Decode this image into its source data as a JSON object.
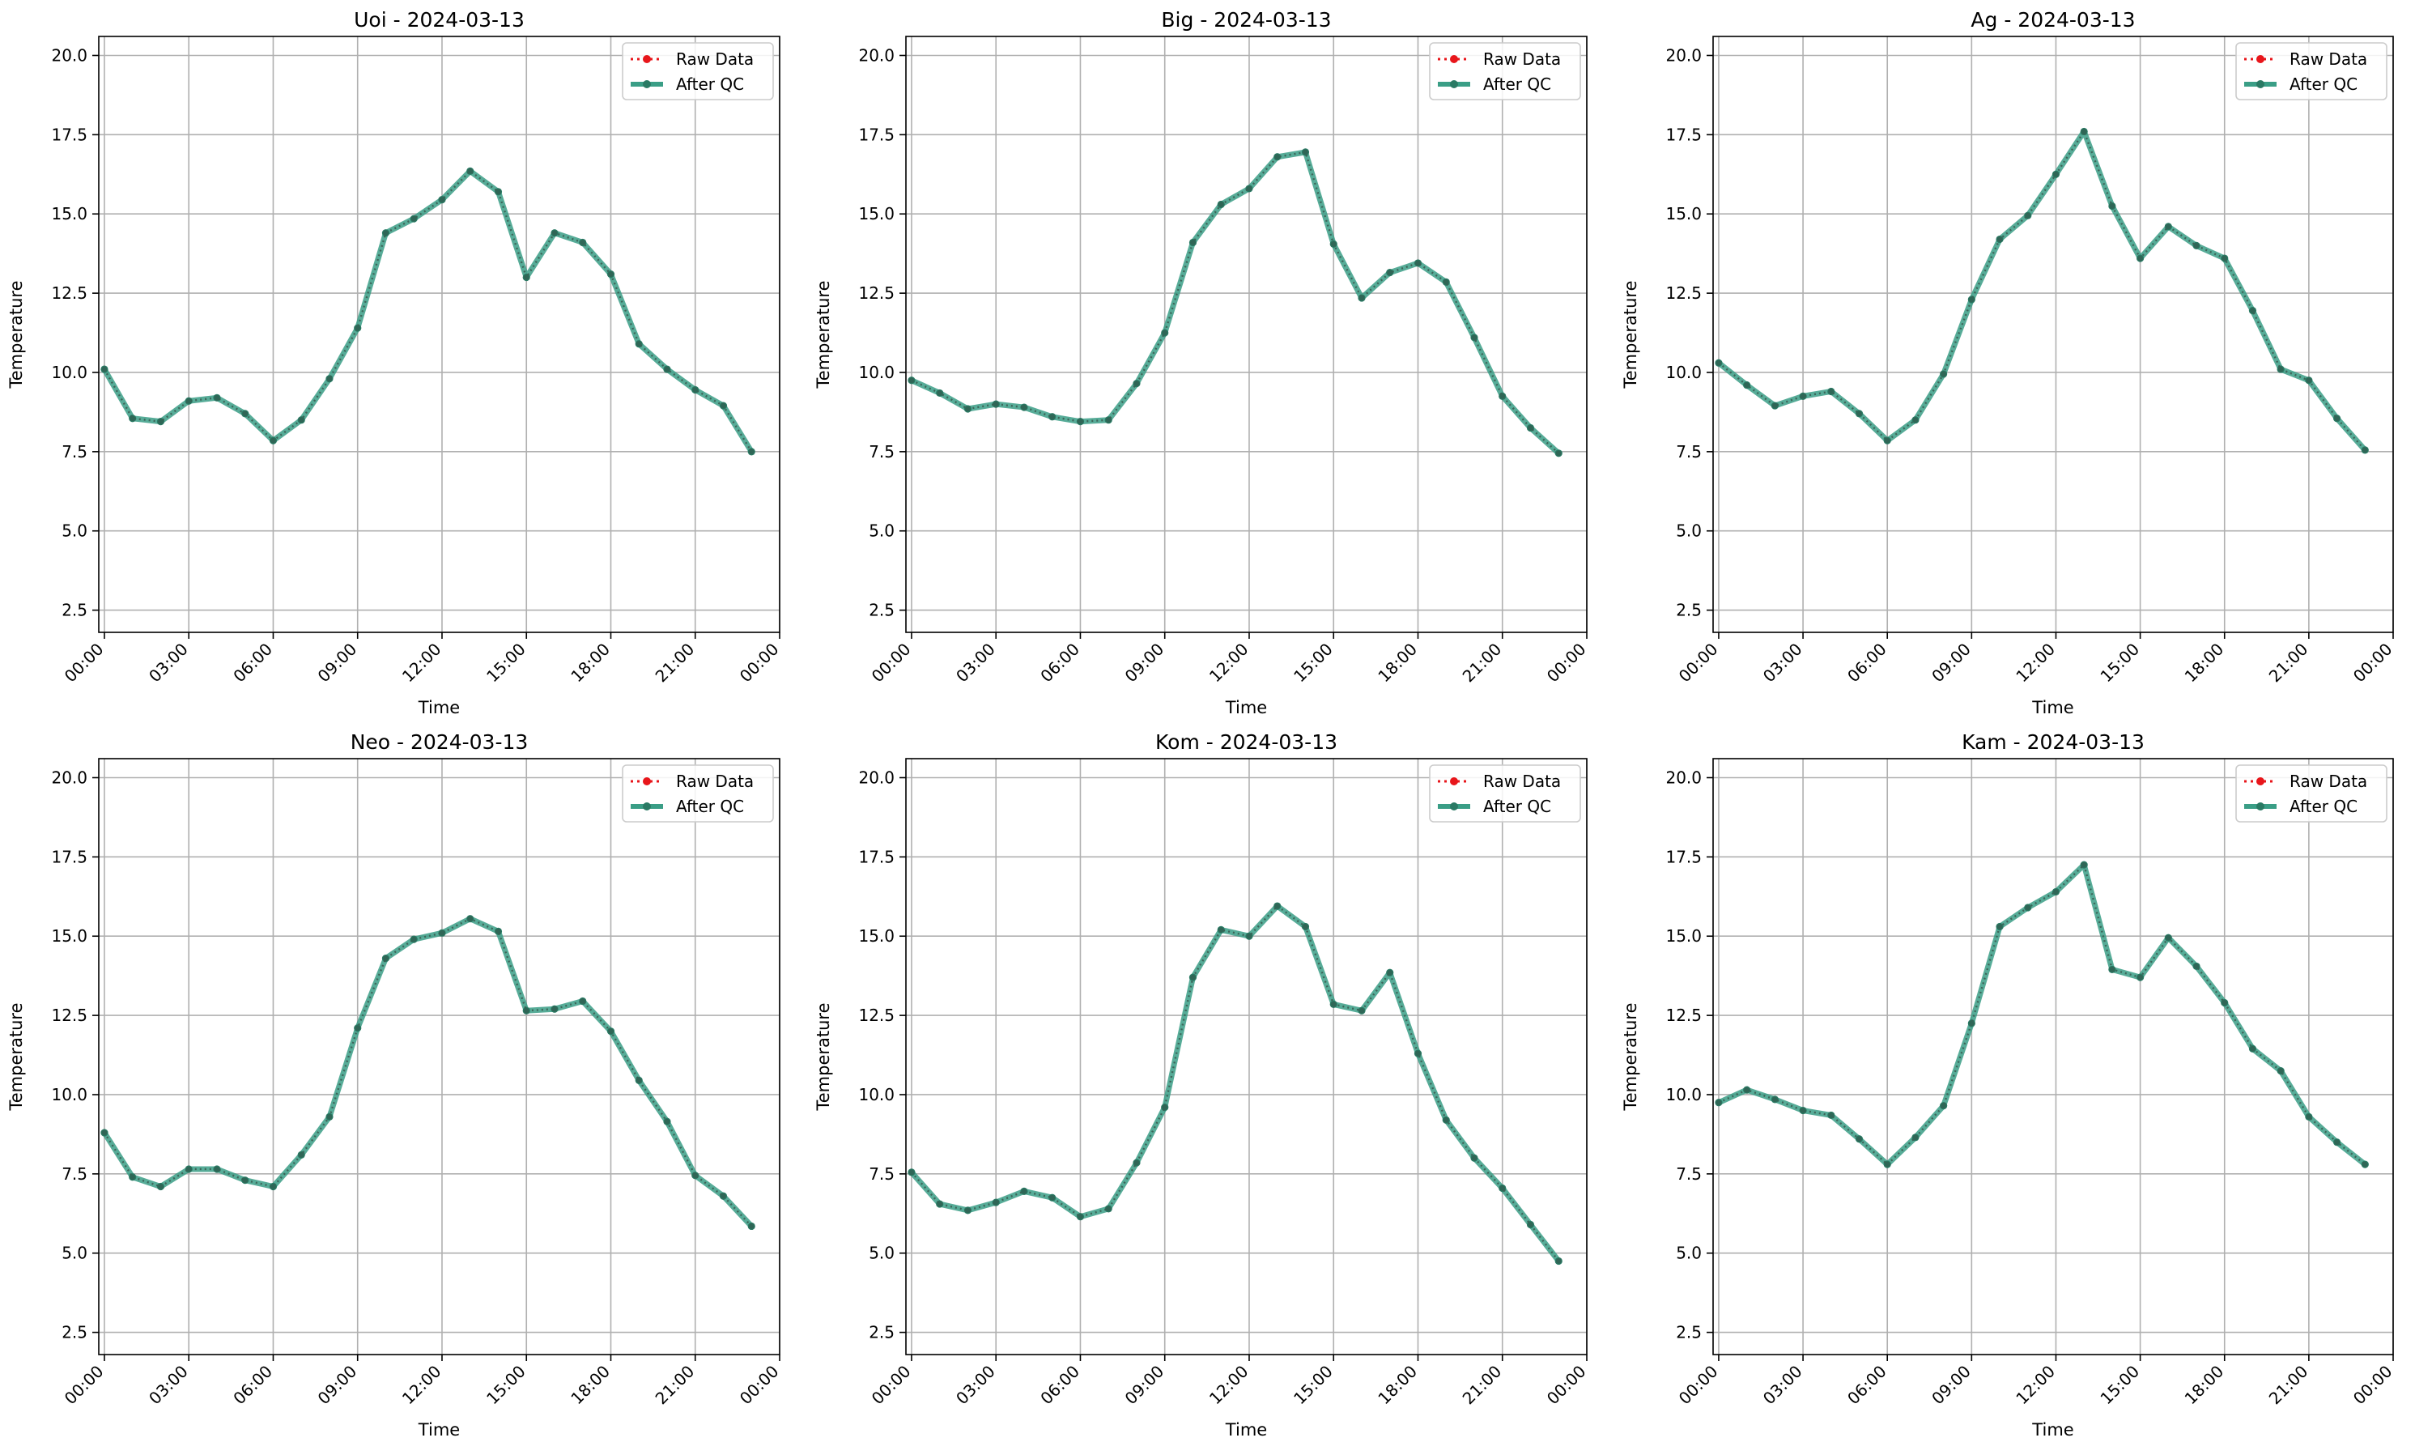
{
  "figure": {
    "legend": {
      "raw_label": "Raw Data",
      "qc_label": "After QC"
    },
    "colors": {
      "raw": "#e8161b",
      "qc": "#3a9e86",
      "grid": "#b0b0b0",
      "marker": "#2a7a64"
    }
  },
  "chart_data": [
    {
      "type": "line",
      "title": "Uoi - 2024-03-13",
      "xlabel": "Time",
      "ylabel": "Temperature",
      "ylim": [
        1.8,
        20.6
      ],
      "yticks": [
        "2.5",
        "5.0",
        "7.5",
        "10.0",
        "12.5",
        "15.0",
        "17.5",
        "20.0"
      ],
      "xticks": [
        "00:00",
        "03:00",
        "06:00",
        "09:00",
        "12:00",
        "15:00",
        "18:00",
        "21:00",
        "00:00"
      ],
      "xlim_hours": [
        -0.2,
        24.0
      ],
      "grid": true,
      "legend_position": "top-right",
      "x_hours": [
        0,
        1,
        2,
        3,
        4,
        5,
        6,
        7,
        8,
        9,
        10,
        11,
        12,
        13,
        14,
        15,
        16,
        17,
        18,
        19,
        20,
        21,
        22,
        23
      ],
      "series": [
        {
          "name": "Raw Data",
          "values": [
            10.1,
            8.55,
            8.45,
            9.1,
            9.2,
            8.7,
            7.85,
            8.5,
            9.8,
            11.4,
            14.4,
            14.85,
            15.45,
            16.35,
            15.7,
            13.0,
            14.4,
            14.1,
            13.1,
            10.9,
            10.1,
            9.45,
            8.95,
            7.5
          ]
        },
        {
          "name": "After QC",
          "values": [
            10.1,
            8.55,
            8.45,
            9.1,
            9.2,
            8.7,
            7.85,
            8.5,
            9.8,
            11.4,
            14.4,
            14.85,
            15.45,
            16.35,
            15.7,
            13.0,
            14.4,
            14.1,
            13.1,
            10.9,
            10.1,
            9.45,
            8.95,
            7.5
          ]
        }
      ]
    },
    {
      "type": "line",
      "title": "Big - 2024-03-13",
      "xlabel": "Time",
      "ylabel": "Temperature",
      "ylim": [
        1.8,
        20.6
      ],
      "yticks": [
        "2.5",
        "5.0",
        "7.5",
        "10.0",
        "12.5",
        "15.0",
        "17.5",
        "20.0"
      ],
      "xticks": [
        "00:00",
        "03:00",
        "06:00",
        "09:00",
        "12:00",
        "15:00",
        "18:00",
        "21:00",
        "00:00"
      ],
      "xlim_hours": [
        -0.2,
        24.0
      ],
      "grid": true,
      "legend_position": "top-right",
      "x_hours": [
        0,
        1,
        2,
        3,
        4,
        5,
        6,
        7,
        8,
        9,
        10,
        11,
        12,
        13,
        14,
        15,
        16,
        17,
        18,
        19,
        20,
        21,
        22,
        23
      ],
      "series": [
        {
          "name": "Raw Data",
          "values": [
            9.75,
            9.35,
            8.85,
            9.0,
            8.9,
            8.6,
            8.45,
            8.5,
            9.65,
            11.25,
            14.1,
            15.3,
            15.8,
            16.8,
            16.95,
            14.05,
            12.35,
            13.15,
            13.45,
            12.85,
            11.1,
            9.25,
            8.25,
            7.45
          ]
        },
        {
          "name": "After QC",
          "values": [
            9.75,
            9.35,
            8.85,
            9.0,
            8.9,
            8.6,
            8.45,
            8.5,
            9.65,
            11.25,
            14.1,
            15.3,
            15.8,
            16.8,
            16.95,
            14.05,
            12.35,
            13.15,
            13.45,
            12.85,
            11.1,
            9.25,
            8.25,
            7.45
          ]
        }
      ]
    },
    {
      "type": "line",
      "title": "Ag - 2024-03-13",
      "xlabel": "Time",
      "ylabel": "Temperature",
      "ylim": [
        1.8,
        20.6
      ],
      "yticks": [
        "2.5",
        "5.0",
        "7.5",
        "10.0",
        "12.5",
        "15.0",
        "17.5",
        "20.0"
      ],
      "xticks": [
        "00:00",
        "03:00",
        "06:00",
        "09:00",
        "12:00",
        "15:00",
        "18:00",
        "21:00",
        "00:00"
      ],
      "xlim_hours": [
        -0.2,
        24.0
      ],
      "grid": true,
      "legend_position": "top-right",
      "x_hours": [
        0,
        1,
        2,
        3,
        4,
        5,
        6,
        7,
        8,
        9,
        10,
        11,
        12,
        13,
        14,
        15,
        16,
        17,
        18,
        19,
        20,
        21,
        22,
        23
      ],
      "series": [
        {
          "name": "Raw Data",
          "values": [
            10.3,
            9.6,
            8.95,
            9.25,
            9.4,
            8.7,
            7.85,
            8.5,
            9.95,
            12.3,
            14.2,
            14.95,
            16.25,
            17.6,
            15.25,
            13.6,
            14.6,
            14.0,
            13.6,
            11.95,
            10.1,
            9.75,
            8.55,
            7.55
          ]
        },
        {
          "name": "After QC",
          "values": [
            10.3,
            9.6,
            8.95,
            9.25,
            9.4,
            8.7,
            7.85,
            8.5,
            9.95,
            12.3,
            14.2,
            14.95,
            16.25,
            17.6,
            15.25,
            13.6,
            14.6,
            14.0,
            13.6,
            11.95,
            10.1,
            9.75,
            8.55,
            7.55
          ]
        }
      ]
    },
    {
      "type": "line",
      "title": "Neo - 2024-03-13",
      "xlabel": "Time",
      "ylabel": "Temperature",
      "ylim": [
        1.8,
        20.6
      ],
      "yticks": [
        "2.5",
        "5.0",
        "7.5",
        "10.0",
        "12.5",
        "15.0",
        "17.5",
        "20.0"
      ],
      "xticks": [
        "00:00",
        "03:00",
        "06:00",
        "09:00",
        "12:00",
        "15:00",
        "18:00",
        "21:00",
        "00:00"
      ],
      "xlim_hours": [
        -0.2,
        24.0
      ],
      "grid": true,
      "legend_position": "top-right",
      "x_hours": [
        0,
        1,
        2,
        3,
        4,
        5,
        6,
        7,
        8,
        9,
        10,
        11,
        12,
        13,
        14,
        15,
        16,
        17,
        18,
        19,
        20,
        21,
        22,
        23
      ],
      "series": [
        {
          "name": "Raw Data",
          "values": [
            8.8,
            7.4,
            7.1,
            7.65,
            7.65,
            7.3,
            7.1,
            8.1,
            9.3,
            12.1,
            14.3,
            14.9,
            15.1,
            15.55,
            15.15,
            12.65,
            12.7,
            12.95,
            12.0,
            10.45,
            9.15,
            7.45,
            6.8,
            5.85
          ]
        },
        {
          "name": "After QC",
          "values": [
            8.8,
            7.4,
            7.1,
            7.65,
            7.65,
            7.3,
            7.1,
            8.1,
            9.3,
            12.1,
            14.3,
            14.9,
            15.1,
            15.55,
            15.15,
            12.65,
            12.7,
            12.95,
            12.0,
            10.45,
            9.15,
            7.45,
            6.8,
            5.85
          ]
        }
      ]
    },
    {
      "type": "line",
      "title": "Kom - 2024-03-13",
      "xlabel": "Time",
      "ylabel": "Temperature",
      "ylim": [
        1.8,
        20.6
      ],
      "yticks": [
        "2.5",
        "5.0",
        "7.5",
        "10.0",
        "12.5",
        "15.0",
        "17.5",
        "20.0"
      ],
      "xticks": [
        "00:00",
        "03:00",
        "06:00",
        "09:00",
        "12:00",
        "15:00",
        "18:00",
        "21:00",
        "00:00"
      ],
      "xlim_hours": [
        -0.2,
        24.0
      ],
      "grid": true,
      "legend_position": "top-right",
      "x_hours": [
        0,
        1,
        2,
        3,
        4,
        5,
        6,
        7,
        8,
        9,
        10,
        11,
        12,
        13,
        14,
        15,
        16,
        17,
        18,
        19,
        20,
        21,
        22,
        23
      ],
      "series": [
        {
          "name": "Raw Data",
          "values": [
            7.55,
            6.55,
            6.35,
            6.6,
            6.95,
            6.75,
            6.15,
            6.4,
            7.85,
            9.6,
            13.7,
            15.2,
            15.0,
            15.95,
            15.3,
            12.85,
            12.65,
            13.85,
            11.3,
            9.2,
            8.0,
            7.05,
            5.9,
            4.75
          ]
        },
        {
          "name": "After QC",
          "values": [
            7.55,
            6.55,
            6.35,
            6.6,
            6.95,
            6.75,
            6.15,
            6.4,
            7.85,
            9.6,
            13.7,
            15.2,
            15.0,
            15.95,
            15.3,
            12.85,
            12.65,
            13.85,
            11.3,
            9.2,
            8.0,
            7.05,
            5.9,
            4.75
          ]
        }
      ]
    },
    {
      "type": "line",
      "title": "Kam - 2024-03-13",
      "xlabel": "Time",
      "ylabel": "Temperature",
      "ylim": [
        1.8,
        20.6
      ],
      "yticks": [
        "2.5",
        "5.0",
        "7.5",
        "10.0",
        "12.5",
        "15.0",
        "17.5",
        "20.0"
      ],
      "xticks": [
        "00:00",
        "03:00",
        "06:00",
        "09:00",
        "12:00",
        "15:00",
        "18:00",
        "21:00",
        "00:00"
      ],
      "xlim_hours": [
        -0.2,
        24.0
      ],
      "grid": true,
      "legend_position": "top-right",
      "x_hours": [
        0,
        1,
        2,
        3,
        4,
        5,
        6,
        7,
        8,
        9,
        10,
        11,
        12,
        13,
        14,
        15,
        16,
        17,
        18,
        19,
        20,
        21,
        22,
        23
      ],
      "series": [
        {
          "name": "Raw Data",
          "values": [
            9.75,
            10.15,
            9.85,
            9.5,
            9.35,
            8.6,
            7.8,
            8.65,
            9.65,
            12.25,
            15.3,
            15.9,
            16.4,
            17.25,
            13.95,
            13.7,
            14.95,
            14.05,
            12.9,
            11.45,
            10.75,
            9.3,
            8.5,
            7.8
          ]
        },
        {
          "name": "After QC",
          "values": [
            9.75,
            10.15,
            9.85,
            9.5,
            9.35,
            8.6,
            7.8,
            8.65,
            9.65,
            12.25,
            15.3,
            15.9,
            16.4,
            17.25,
            13.95,
            13.7,
            14.95,
            14.05,
            12.9,
            11.45,
            10.75,
            9.3,
            8.5,
            7.8
          ]
        }
      ]
    }
  ]
}
